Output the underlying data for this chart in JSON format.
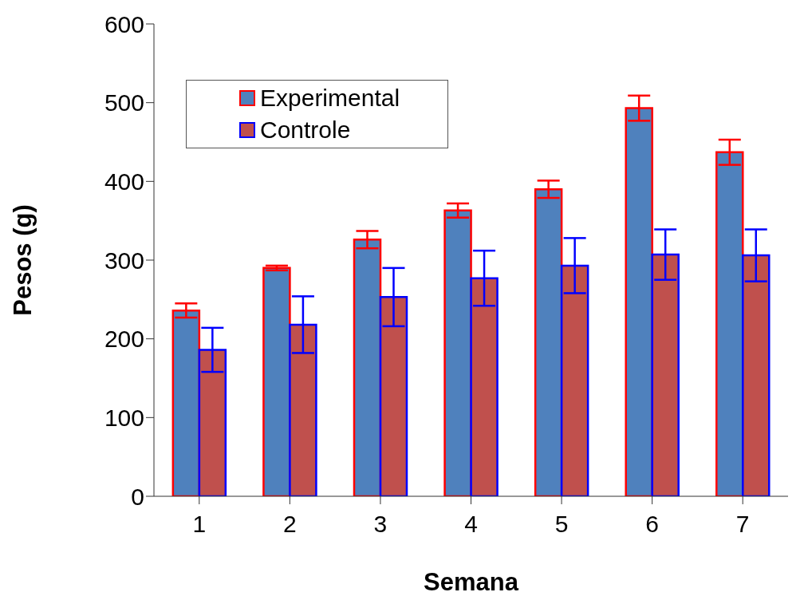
{
  "chart_data": {
    "type": "bar",
    "xlabel": "Semana",
    "ylabel": "Pesos (g)",
    "categories": [
      "1",
      "2",
      "3",
      "4",
      "5",
      "6",
      "7"
    ],
    "series": [
      {
        "name": "Experimental",
        "color": "#4f81bd",
        "values": [
          236,
          290,
          326,
          363,
          390,
          493,
          437
        ],
        "errors": [
          9,
          3,
          11,
          9,
          11,
          16,
          16
        ]
      },
      {
        "name": "Controle",
        "color": "#c0504d",
        "values": [
          186,
          218,
          253,
          277,
          293,
          307,
          306
        ],
        "errors": [
          28,
          36,
          37,
          35,
          35,
          32,
          33
        ]
      }
    ],
    "ylim": [
      0,
      600
    ],
    "yticks": [
      0,
      100,
      200,
      300,
      400,
      500,
      600
    ],
    "grid": false,
    "legend": "top left"
  }
}
